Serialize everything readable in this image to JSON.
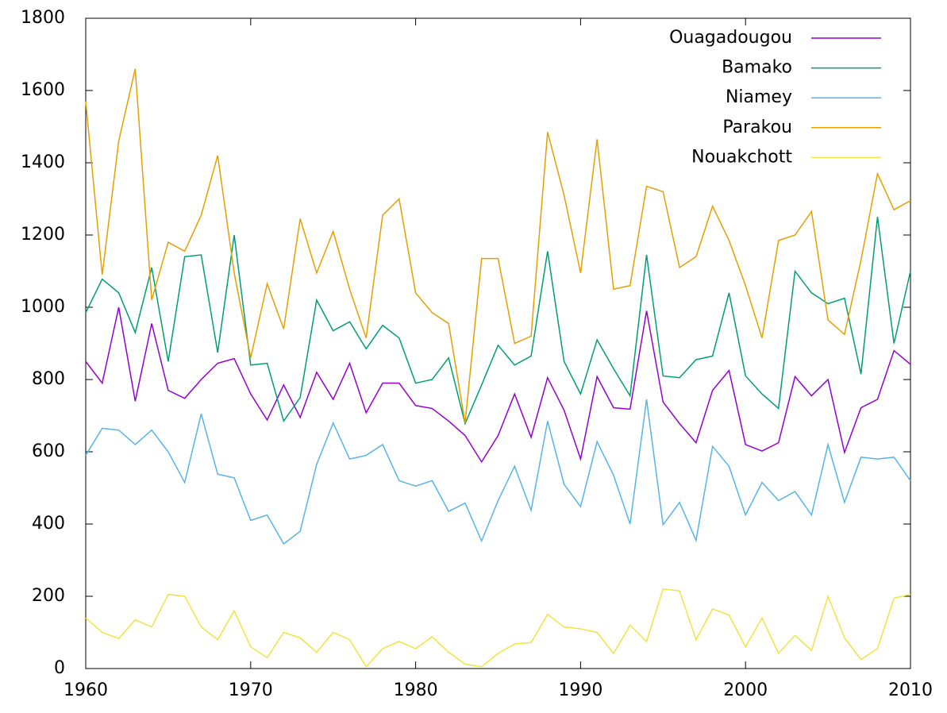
{
  "chart_data": {
    "type": "line",
    "x": [
      1960,
      1961,
      1962,
      1963,
      1964,
      1965,
      1966,
      1967,
      1968,
      1969,
      1970,
      1971,
      1972,
      1973,
      1974,
      1975,
      1976,
      1977,
      1978,
      1979,
      1980,
      1981,
      1982,
      1983,
      1984,
      1985,
      1986,
      1987,
      1988,
      1989,
      1990,
      1991,
      1992,
      1993,
      1994,
      1995,
      1996,
      1997,
      1998,
      1999,
      2000,
      2001,
      2002,
      2003,
      2004,
      2005,
      2006,
      2007,
      2008,
      2009,
      2010
    ],
    "series": [
      {
        "name": "Ouagadougou",
        "color": "#9400d3",
        "values": [
          850,
          790,
          1000,
          740,
          955,
          770,
          748,
          800,
          845,
          858,
          760,
          688,
          785,
          695,
          820,
          745,
          845,
          708,
          790,
          790,
          728,
          720,
          685,
          645,
          572,
          645,
          760,
          640,
          805,
          715,
          580,
          808,
          722,
          718,
          990,
          738,
          678,
          625,
          770,
          825,
          620,
          602,
          625,
          808,
          755,
          800,
          598,
          722,
          745,
          880,
          842
        ]
      },
      {
        "name": "Bamako",
        "color": "#009e73",
        "values": [
          985,
          1078,
          1040,
          930,
          1110,
          850,
          1140,
          1145,
          875,
          1200,
          840,
          845,
          685,
          750,
          1020,
          935,
          960,
          885,
          950,
          915,
          790,
          800,
          860,
          678,
          785,
          895,
          840,
          865,
          1155,
          850,
          760,
          910,
          830,
          755,
          1145,
          810,
          805,
          855,
          865,
          1040,
          810,
          760,
          720,
          1100,
          1040,
          1010,
          1025,
          815,
          1250,
          900,
          1100
        ]
      },
      {
        "name": "Niamey",
        "color": "#56b4e9",
        "values": [
          590,
          665,
          660,
          620,
          660,
          600,
          515,
          705,
          538,
          528,
          410,
          425,
          345,
          380,
          565,
          680,
          580,
          590,
          620,
          520,
          505,
          520,
          435,
          458,
          353,
          465,
          560,
          438,
          685,
          510,
          448,
          628,
          535,
          400,
          745,
          398,
          460,
          355,
          615,
          560,
          425,
          515,
          465,
          490,
          425,
          620,
          460,
          585,
          580,
          585,
          520
        ]
      },
      {
        "name": "Parakou",
        "color": "#e69f00",
        "values": [
          1570,
          1090,
          1460,
          1660,
          1020,
          1180,
          1155,
          1255,
          1420,
          1095,
          860,
          1065,
          940,
          1245,
          1095,
          1210,
          1050,
          915,
          1255,
          1300,
          1040,
          985,
          955,
          680,
          1135,
          1135,
          900,
          920,
          1485,
          1310,
          1095,
          1465,
          1050,
          1060,
          1335,
          1320,
          1110,
          1140,
          1280,
          1185,
          1060,
          915,
          1185,
          1200,
          1265,
          965,
          925,
          1130,
          1370,
          1270,
          1295
        ]
      },
      {
        "name": "Nouakchott",
        "color": "#f0e442",
        "values": [
          140,
          100,
          83,
          135,
          115,
          205,
          200,
          115,
          80,
          160,
          60,
          30,
          100,
          85,
          45,
          100,
          80,
          5,
          55,
          75,
          55,
          88,
          45,
          12,
          5,
          42,
          68,
          72,
          150,
          115,
          110,
          100,
          42,
          120,
          75,
          220,
          215,
          80,
          165,
          148,
          60,
          140,
          42,
          92,
          50,
          200,
          85,
          25,
          55,
          195,
          205
        ]
      }
    ],
    "xlim": [
      1960,
      2010
    ],
    "xticks": [
      1960,
      1970,
      1980,
      1990,
      2000,
      2010
    ],
    "ylim": [
      0,
      1800
    ],
    "yticks": [
      0,
      200,
      400,
      600,
      800,
      1000,
      1200,
      1400,
      1600,
      1800
    ],
    "legend": "top-right",
    "grid": false
  }
}
